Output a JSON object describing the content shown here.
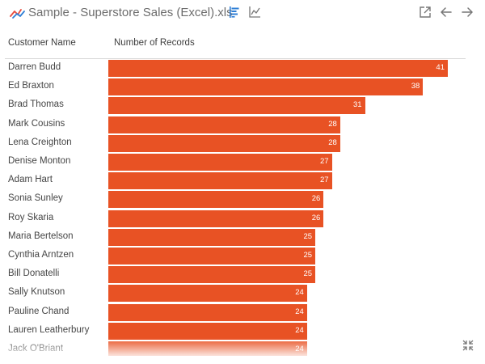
{
  "header": {
    "title": "Sample - Superstore Sales (Excel).xls",
    "icons": {
      "datasource": "line-chart-datasource-icon",
      "bar_chart": "horizontal-bar-chart-icon",
      "line_chart": "line-chart-icon",
      "open_external": "open-external-icon",
      "back": "arrow-left-icon",
      "forward": "arrow-right-icon",
      "collapse": "collapse-icon"
    }
  },
  "columns": {
    "name_header": "Customer Name",
    "value_header": "Number of Records"
  },
  "colors": {
    "bar": "#e85224",
    "bar_label": "#ffffff",
    "accent_icon": "#2f7fd6"
  },
  "chart_data": {
    "type": "bar",
    "orientation": "horizontal",
    "categories": [
      "Darren Budd",
      "Ed Braxton",
      "Brad Thomas",
      "Mark Cousins",
      "Lena Creighton",
      "Denise Monton",
      "Adam Hart",
      "Sonia Sunley",
      "Roy Skaria",
      "Maria Bertelson",
      "Cynthia Arntzen",
      "Bill Donatelli",
      "Sally Knutson",
      "Pauline Chand",
      "Lauren Leatherbury",
      "Jack O'Briant"
    ],
    "values": [
      41,
      38,
      31,
      28,
      28,
      27,
      27,
      26,
      26,
      25,
      25,
      25,
      24,
      24,
      24,
      24
    ],
    "xlabel": "Number of Records",
    "ylabel": "Customer Name",
    "xlim": [
      0,
      41
    ],
    "grid": false,
    "data_labels": true
  }
}
